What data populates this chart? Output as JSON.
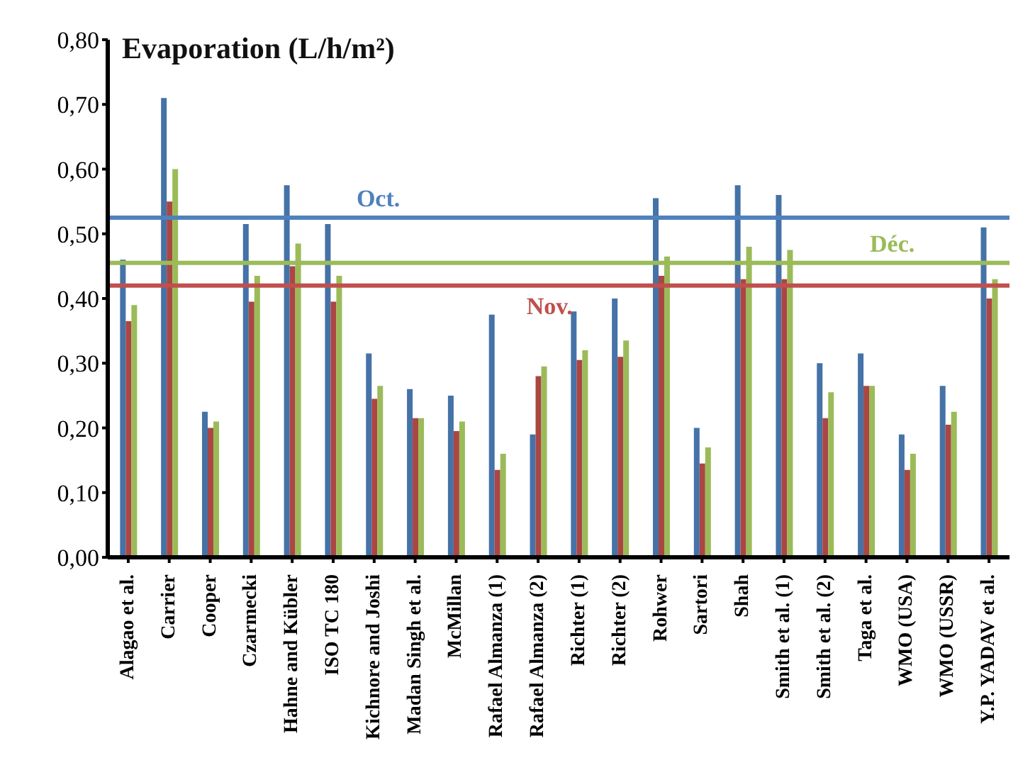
{
  "chart_data": {
    "type": "bar",
    "title": "Evaporation (L/h/m²)",
    "categories": [
      "Alagao et al.",
      "Carrier",
      "Cooper",
      "Czarmecki",
      "Hahne and Kübler",
      "ISO TC 180",
      "Kichnore and Joshi",
      "Madan Singh et al.",
      "McMillan",
      "Rafael Almanza (1)",
      "Rafael Almanza (2)",
      "Richter (1)",
      "Richter (2)",
      "Rohwer",
      "Sartori",
      "Shah",
      "Smith et al. (1)",
      "Smith et al. (2)",
      "Taga et al.",
      "WMO (USA)",
      "WMO (USSR)",
      "Y.P. YADAV et al."
    ],
    "series": [
      {
        "color": "#4572a7",
        "values": [
          0.46,
          0.71,
          0.225,
          0.515,
          0.575,
          0.515,
          0.315,
          0.26,
          0.25,
          0.375,
          0.19,
          0.38,
          0.4,
          0.555,
          0.2,
          0.575,
          0.56,
          0.3,
          0.315,
          0.19,
          0.265,
          0.51
        ]
      },
      {
        "color": "#aa4643",
        "values": [
          0.365,
          0.55,
          0.2,
          0.395,
          0.45,
          0.395,
          0.245,
          0.215,
          0.195,
          0.135,
          0.28,
          0.305,
          0.31,
          0.435,
          0.145,
          0.43,
          0.43,
          0.215,
          0.265,
          0.135,
          0.205,
          0.4
        ]
      },
      {
        "color": "#9bbb59",
        "values": [
          0.39,
          0.6,
          0.21,
          0.435,
          0.485,
          0.435,
          0.265,
          0.215,
          0.21,
          0.16,
          0.295,
          0.32,
          0.335,
          0.465,
          0.17,
          0.48,
          0.475,
          0.255,
          0.265,
          0.16,
          0.225,
          0.43
        ]
      }
    ],
    "ylim": [
      0,
      0.8
    ],
    "yticks": [
      {
        "value": 0,
        "label": "0,00"
      },
      {
        "value": 0.1,
        "label": "0,10"
      },
      {
        "value": 0.2,
        "label": "0,20"
      },
      {
        "value": 0.3,
        "label": "0,30"
      },
      {
        "value": 0.4,
        "label": "0,40"
      },
      {
        "value": 0.5,
        "label": "0,50"
      },
      {
        "value": 0.6,
        "label": "0,60"
      },
      {
        "value": 0.7,
        "label": "0,70"
      },
      {
        "value": 0.8,
        "label": "0,80"
      }
    ],
    "ref_lines": [
      {
        "axis": "y",
        "value": 0.525,
        "label": "Oct.",
        "color": "#4f81bd"
      },
      {
        "axis": "y",
        "value": 0.42,
        "label": "Nov.",
        "color": "#c0504d"
      },
      {
        "axis": "y",
        "value": 0.455,
        "label": "Déc.",
        "color": "#9bbb59"
      }
    ],
    "grid": false,
    "legend": false
  }
}
